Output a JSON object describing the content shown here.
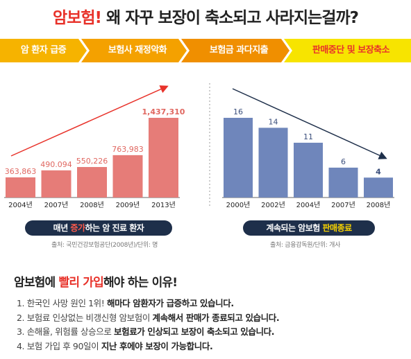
{
  "headline": {
    "highlight": "암보험!",
    "rest": " 왜 자꾸 보장이 축소되고 사라지는걸까?"
  },
  "flow_steps": [
    "암 환자 급증",
    "보험사 재정악화",
    "보험금 과다지출",
    "판매중단 및 보장축소"
  ],
  "chart_data": [
    {
      "type": "bar",
      "categories": [
        "2004년",
        "2007년",
        "2008년",
        "2009년",
        "2013년"
      ],
      "values": [
        363863,
        490094,
        550226,
        763983,
        1437310
      ],
      "data_labels": [
        "363,863",
        "490.094",
        "550,226",
        "763,983",
        "1,437,310"
      ],
      "trend": "up",
      "color": "#e67c78"
    },
    {
      "type": "bar",
      "categories": [
        "2000년",
        "2002년",
        "2004년",
        "2007년",
        "2008년"
      ],
      "values": [
        16,
        14,
        11,
        6,
        4
      ],
      "data_labels": [
        "16",
        "14",
        "11",
        "6",
        "4"
      ],
      "trend": "down",
      "color": "#6f86bb"
    }
  ],
  "captions": {
    "left_pre": "매년 ",
    "left_hl": "증가",
    "left_post": "하는 암 진료 환자",
    "right_pre": "계속되는 암보험 ",
    "right_hl": "판매종료",
    "left_source": "출처: 국민건강보험공단(2008년)/단위: 명",
    "right_source": "출처: 금융감독원/단위: 개사"
  },
  "reasons": {
    "title_pre": "암보험에 ",
    "title_hl": "빨리 가입",
    "title_post": "해야 하는 이유!",
    "items": [
      {
        "plain": "1. 한국인 사망 원인 1위! ",
        "bold": "해마다 암환자가 급증하고 있습니다."
      },
      {
        "plain": "2. 보험료 인상없는 비갱신형 암보험이 ",
        "bold": "계속해서 판매가 종료되고 있습니다."
      },
      {
        "plain": "3. 손해율, 위험률 상승으로 ",
        "bold": "보험료가 인상되고 보장이 축소되고 있습니다."
      },
      {
        "plain": "4. 보험 가입 후 90일이 ",
        "bold": "지난 후에야 보장이 가능합니다."
      }
    ]
  }
}
